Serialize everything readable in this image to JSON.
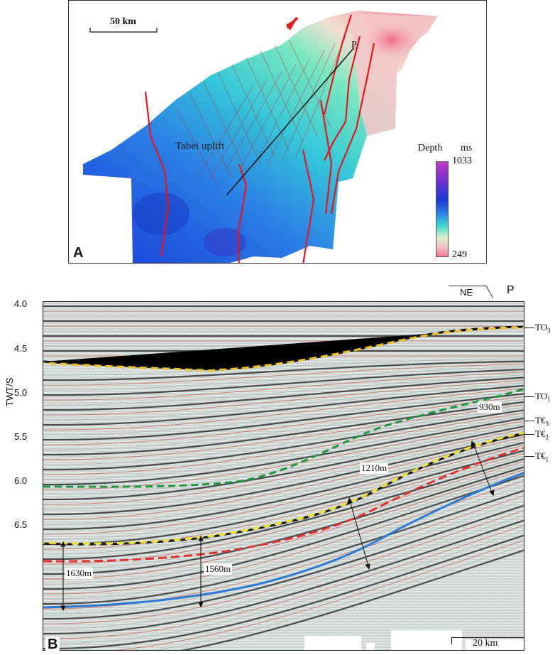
{
  "panel_a": {
    "letter": "A",
    "scale_label": "50 km",
    "region_label": "Tabei uplift",
    "profile_point": "P",
    "legend": {
      "title": "Depth",
      "unit": "ms",
      "max": "1033",
      "min": "249",
      "colors": [
        "#c837c8",
        "#6a2fd6",
        "#1536d8",
        "#2f84e8",
        "#3fd8d0",
        "#d8f0c8",
        "#f5c0c4",
        "#f07890"
      ]
    },
    "fault_color": "#e8141c"
  },
  "panel_b": {
    "letter": "B",
    "y_axis_label": "TWT/S",
    "y_ticks": [
      "4.0",
      "4.5",
      "5.0",
      "5.5",
      "6.0",
      "6.5"
    ],
    "direction_label": "NE",
    "profile_point": "P",
    "scale_label": "20 km",
    "horizons": [
      {
        "name": "TO",
        "sub": "3",
        "color": "#f0c020"
      },
      {
        "name": "TO",
        "sub": "1",
        "color": "#1a9a3a"
      },
      {
        "name": "T€",
        "sub": "3",
        "color": "#f0e020"
      },
      {
        "name": "T€",
        "sub": "2",
        "color": "#e83030"
      },
      {
        "name": "T€",
        "sub": "1",
        "color": "#2a7ad8"
      }
    ],
    "thickness_labels": [
      "930m",
      "1210m",
      "1630m",
      "1560m"
    ]
  }
}
